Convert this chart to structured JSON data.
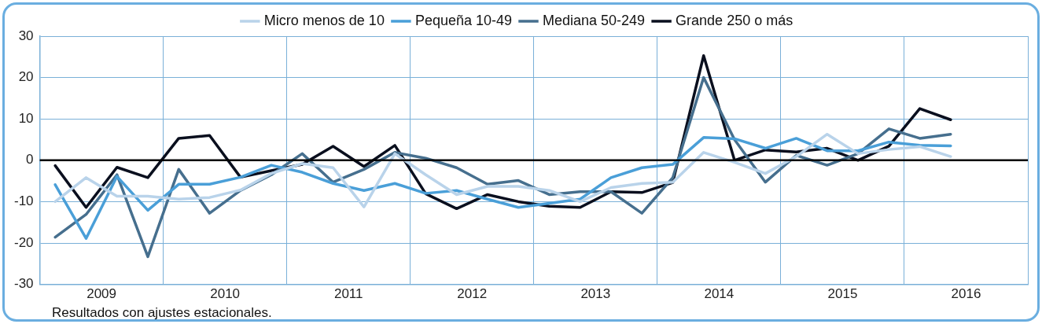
{
  "chart_data": {
    "type": "line",
    "x": [
      2009.125,
      2009.375,
      2009.625,
      2009.875,
      2010.125,
      2010.375,
      2010.625,
      2010.875,
      2011.125,
      2011.375,
      2011.625,
      2011.875,
      2012.125,
      2012.375,
      2012.625,
      2012.875,
      2013.125,
      2013.375,
      2013.625,
      2013.875,
      2014.125,
      2014.375,
      2014.625,
      2014.875,
      2015.125,
      2015.375,
      2015.625,
      2015.875,
      2016.125,
      2016.375
    ],
    "series": [
      {
        "name": "Micro menos de 10",
        "color": "#b9d3ea",
        "values": [
          -10,
          -4.2,
          -8.7,
          -8.7,
          -9.4,
          -9,
          -7.2,
          -3.2,
          -0.8,
          -1.8,
          -11.3,
          1.6,
          -3.5,
          -8.3,
          -6.3,
          -6.3,
          -7.3,
          -10,
          -6.6,
          -5.6,
          -5.3,
          1.9,
          -0.5,
          -3.2,
          0.9,
          6.3,
          1.6,
          2.6,
          3.3,
          0.9
        ]
      },
      {
        "name": "Pequeña 10-49",
        "color": "#4a9fd8",
        "values": [
          -5.9,
          -18.9,
          -3.9,
          -12.1,
          -5.8,
          -5.8,
          -4.1,
          -1.2,
          -2.9,
          -5.6,
          -7.3,
          -5.6,
          -8,
          -7.3,
          -9.4,
          -11.4,
          -10.4,
          -9.4,
          -4.2,
          -1.8,
          -1,
          5.5,
          5.2,
          2.9,
          5.3,
          2.3,
          2.3,
          4.4,
          3.6,
          3.5
        ]
      },
      {
        "name": "Mediana 50-249",
        "color": "#466f8e",
        "values": [
          -18.6,
          -13.1,
          -3.5,
          -23.3,
          -2.2,
          -12.8,
          -7.3,
          -3.5,
          1.6,
          -5.3,
          -2.2,
          1.9,
          0.5,
          -1.8,
          -5.8,
          -4.9,
          -8.3,
          -7.6,
          -7.6,
          -12.8,
          -4.2,
          20,
          5,
          -5.3,
          1.2,
          -1.2,
          1.6,
          7.6,
          5.3,
          6.3
        ]
      },
      {
        "name": "Grande 250 o más",
        "color": "#0a0f1e",
        "values": [
          -1.3,
          -11.4,
          -1.7,
          -4.2,
          5.3,
          6,
          -4.1,
          -2.5,
          -1,
          3.4,
          -1.5,
          3.6,
          -8.1,
          -11.7,
          -8.3,
          -10,
          -11.1,
          -11.4,
          -7.6,
          -7.8,
          -5.4,
          25.3,
          0,
          2.5,
          2,
          2.9,
          0,
          3.4,
          12.5,
          9.8
        ]
      }
    ],
    "xlim": [
      2009,
      2017
    ],
    "xticks": [
      {
        "value": 2009,
        "label": null
      },
      {
        "value": 2009.5,
        "label": "2009"
      },
      {
        "value": 2010,
        "label": null
      },
      {
        "value": 2010.5,
        "label": "2010"
      },
      {
        "value": 2011,
        "label": null
      },
      {
        "value": 2011.5,
        "label": "2011"
      },
      {
        "value": 2012,
        "label": null
      },
      {
        "value": 2012.5,
        "label": "2012"
      },
      {
        "value": 2013,
        "label": null
      },
      {
        "value": 2013.5,
        "label": "2013"
      },
      {
        "value": 2014,
        "label": null
      },
      {
        "value": 2014.5,
        "label": "2014"
      },
      {
        "value": 2015,
        "label": null
      },
      {
        "value": 2015.5,
        "label": "2015"
      },
      {
        "value": 2016,
        "label": null
      },
      {
        "value": 2016.5,
        "label": "2016"
      },
      {
        "value": 2017,
        "label": null
      }
    ],
    "ylim": [
      -30,
      30
    ],
    "yticks": [
      -30,
      -20,
      -10,
      0,
      10,
      20,
      30
    ],
    "grid": true,
    "legend": "top",
    "marker": "none",
    "line_style": "solid",
    "ref_lines": [
      {
        "axis": "y",
        "value": 0,
        "color": "#000000"
      }
    ],
    "annotations": [
      "Resultados con ajustes estacionales."
    ]
  }
}
